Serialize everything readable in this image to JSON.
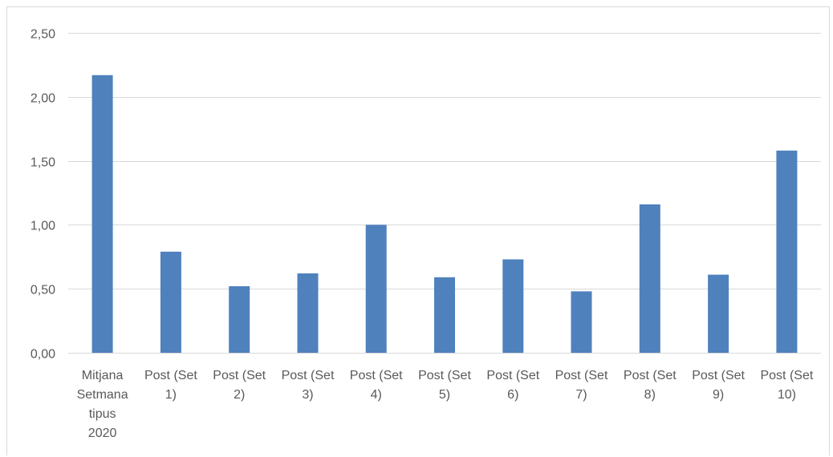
{
  "chart_data": {
    "type": "bar",
    "categories": [
      "Mitjana Setmana tipus 2020",
      "Post (Set 1)",
      "Post (Set 2)",
      "Post (Set 3)",
      "Post (Set 4)",
      "Post (Set 5)",
      "Post (Set 6)",
      "Post (Set 7)",
      "Post (Set 8)",
      "Post (Set 9)",
      "Post (Set 10)"
    ],
    "category_lines": [
      [
        "Mitjana",
        "Setmana",
        "tipus",
        "2020"
      ],
      [
        "Post (Set",
        "1)"
      ],
      [
        "Post (Set",
        "2)"
      ],
      [
        "Post (Set",
        "3)"
      ],
      [
        "Post (Set",
        "4)"
      ],
      [
        "Post (Set",
        "5)"
      ],
      [
        "Post (Set",
        "6)"
      ],
      [
        "Post (Set",
        "7)"
      ],
      [
        "Post (Set",
        "8)"
      ],
      [
        "Post (Set",
        "9)"
      ],
      [
        "Post (Set",
        "10)"
      ]
    ],
    "values": [
      2.17,
      0.79,
      0.52,
      0.62,
      1.0,
      0.59,
      0.73,
      0.48,
      1.16,
      0.61,
      1.58
    ],
    "ylim": [
      0,
      2.5
    ],
    "yticks": [
      0,
      0.5,
      1,
      1.5,
      2,
      2.5
    ],
    "ytick_labels": [
      "0,00",
      "0,50",
      "1,00",
      "1,50",
      "2,00",
      "2,50"
    ],
    "grid": true,
    "legend": "none",
    "title": "",
    "xlabel": "",
    "ylabel": "",
    "colors": {
      "bar": "#4f81bd",
      "grid": "#d9d9d9",
      "axis_text": "#595959"
    }
  }
}
